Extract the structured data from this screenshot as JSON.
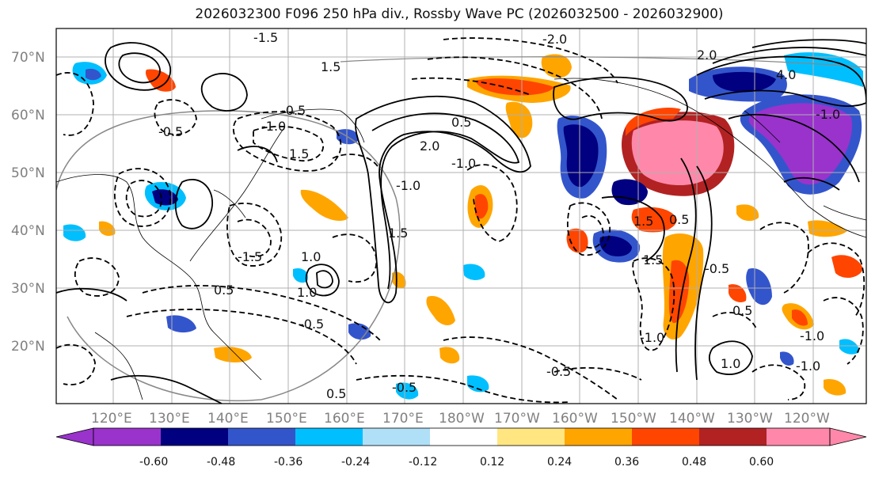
{
  "title": "2026032300 F096 250 hPa div., Rossby Wave PC (2026032500 - 2026032900)",
  "lat_labels": [
    "70°N",
    "60°N",
    "50°N",
    "40°N",
    "30°N",
    "20°N"
  ],
  "lon_labels": [
    "120°E",
    "130°E",
    "140°E",
    "150°E",
    "160°E",
    "170°E",
    "180°W",
    "170°W",
    "160°W",
    "150°W",
    "140°W",
    "130°W",
    "120°W"
  ],
  "colorbar": {
    "colors": [
      "#9933cc",
      "#000080",
      "#3355cc",
      "#00bfff",
      "#b0e0f8",
      "#ffffff",
      "#ffe680",
      "#ffa500",
      "#ff4500",
      "#b22222",
      "#ff88aa"
    ],
    "labels": [
      "-0.60",
      "-0.48",
      "-0.36",
      "-0.24",
      "-0.12",
      "0.12",
      "0.24",
      "0.36",
      "0.48",
      "0.60"
    ]
  },
  "contour_labels": [
    "-1.5",
    "1.5",
    "-0.5",
    "-1.0",
    "2.0",
    "-0.5",
    "1.5",
    "0.5",
    "1.5",
    "-2.0",
    "-1.0",
    "2.0",
    "4.0",
    "-1.0",
    "0.5",
    "-0.5",
    "1.0",
    "-1.0",
    "0.5",
    "-0.5",
    "1.5",
    "-1.5",
    "1.5",
    "-0.5",
    "0.5",
    "-1.0",
    "-0.5",
    "-1.0",
    "1.0",
    "1.0",
    "-1.0",
    "0.5"
  ],
  "map_colors": {
    "purple": "#9933cc",
    "navy": "#000080",
    "blue": "#3355cc",
    "cyan": "#00bfff",
    "lightblue": "#b0e0f8",
    "yellow": "#ffe680",
    "orange": "#ffa500",
    "redorange": "#ff4500",
    "firebrick": "#b22222",
    "pink": "#ff88aa"
  }
}
